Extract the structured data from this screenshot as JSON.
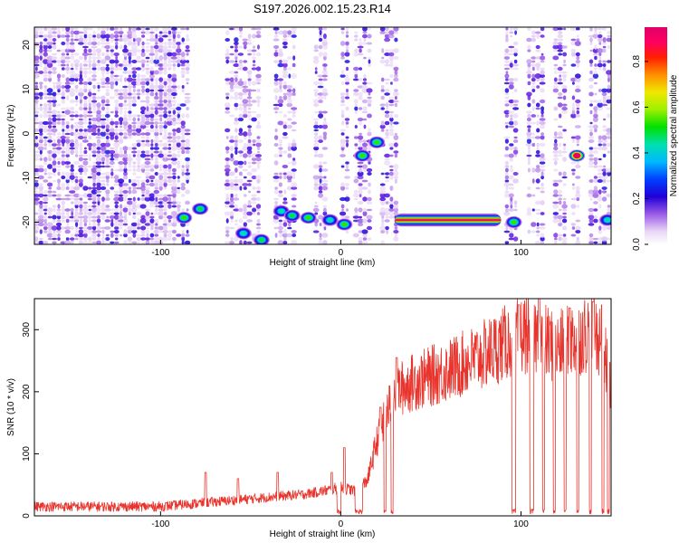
{
  "title": "S197.2026.002.15.23.R14",
  "chart_data": [
    {
      "type": "heatmap",
      "title": "S197.2026.002.15.23.R14",
      "xlabel": "Height of straight line (km)",
      "ylabel": "Frequency (Hz)",
      "xlim": [
        -170,
        150
      ],
      "ylim": [
        -25,
        24
      ],
      "xticks": [
        -100,
        0,
        100
      ],
      "yticks": [
        -20,
        -10,
        0,
        10,
        20
      ],
      "colorbar": {
        "label": "Normalized spectral amplitude",
        "range": [
          0,
          0.95
        ],
        "ticks": [
          0.0,
          0.2,
          0.4,
          0.6,
          0.8
        ],
        "colormap": [
          "#ffffff",
          "#e6d2f5",
          "#b07be6",
          "#6a1ee0",
          "#2200d8",
          "#0050ff",
          "#00c8ff",
          "#00e0a0",
          "#00e000",
          "#aaf000",
          "#f0e000",
          "#ff8800",
          "#ff2000",
          "#ff0070",
          "#e0006a"
        ]
      },
      "gaps_km": [
        [
          -85,
          -65
        ],
        [
          -45,
          -37
        ],
        [
          -25,
          -15
        ],
        [
          -7,
          0
        ],
        [
          4,
          8
        ],
        [
          16,
          22
        ],
        [
          31,
          90
        ],
        [
          99,
          103
        ],
        [
          113,
          117
        ],
        [
          125,
          128
        ],
        [
          134,
          138
        ]
      ],
      "peaks": [
        {
          "x": -87,
          "y": -19,
          "amp": 0.45
        },
        {
          "x": -78,
          "y": -17,
          "amp": 0.4
        },
        {
          "x": -54,
          "y": -22.5,
          "amp": 0.35
        },
        {
          "x": -44,
          "y": -24,
          "amp": 0.4
        },
        {
          "x": -33,
          "y": -17.5,
          "amp": 0.35
        },
        {
          "x": -27,
          "y": -18.5,
          "amp": 0.4
        },
        {
          "x": -18,
          "y": -19,
          "amp": 0.45
        },
        {
          "x": -6,
          "y": -19.5,
          "amp": 0.35
        },
        {
          "x": 2,
          "y": -20.5,
          "amp": 0.45
        },
        {
          "x": 12,
          "y": -5,
          "amp": 0.45
        },
        {
          "x": 20,
          "y": -2,
          "amp": 0.45
        },
        {
          "x": 96,
          "y": -20,
          "amp": 0.45
        },
        {
          "x": 131,
          "y": -5,
          "amp": 0.95
        },
        {
          "x": 148,
          "y": -19.5,
          "amp": 0.35
        }
      ],
      "band": {
        "x_range": [
          30,
          89
        ],
        "y": -19.5,
        "amp": 0.95
      }
    },
    {
      "type": "line",
      "xlabel": "Height of straight line (km)",
      "ylabel": "SNR (10 * v/v)",
      "xlim": [
        -170,
        150
      ],
      "ylim": [
        0,
        350
      ],
      "xticks": [
        -100,
        0,
        100
      ],
      "yticks": [
        0,
        100,
        200,
        300
      ],
      "color": "#e8342c",
      "envelope": [
        {
          "x": -170,
          "y": 15
        },
        {
          "x": -130,
          "y": 15
        },
        {
          "x": -100,
          "y": 15
        },
        {
          "x": -80,
          "y": 20
        },
        {
          "x": -60,
          "y": 25
        },
        {
          "x": -40,
          "y": 30
        },
        {
          "x": -20,
          "y": 35
        },
        {
          "x": 0,
          "y": 45
        },
        {
          "x": 10,
          "y": 40
        },
        {
          "x": 15,
          "y": 60
        },
        {
          "x": 20,
          "y": 120
        },
        {
          "x": 25,
          "y": 160
        },
        {
          "x": 30,
          "y": 200
        },
        {
          "x": 40,
          "y": 215
        },
        {
          "x": 60,
          "y": 235
        },
        {
          "x": 80,
          "y": 260
        },
        {
          "x": 95,
          "y": 285
        },
        {
          "x": 105,
          "y": 295
        },
        {
          "x": 120,
          "y": 270
        },
        {
          "x": 140,
          "y": 300
        },
        {
          "x": 145,
          "y": 280
        },
        {
          "x": 150,
          "y": 205
        }
      ],
      "dropouts": [
        [
          -2,
          0
        ],
        [
          8,
          12
        ],
        [
          24,
          25
        ],
        [
          28,
          29
        ],
        [
          95,
          97
        ],
        [
          105,
          107
        ],
        [
          112,
          113
        ],
        [
          118,
          119
        ],
        [
          124,
          125
        ],
        [
          131,
          132
        ],
        [
          138,
          139
        ],
        [
          145,
          146
        ],
        [
          148,
          149
        ]
      ],
      "spikes": [
        {
          "x": -75,
          "y": 70
        },
        {
          "x": -57,
          "y": 60
        },
        {
          "x": -35,
          "y": 70
        },
        {
          "x": -5,
          "y": 70
        },
        {
          "x": 2,
          "y": 110
        },
        {
          "x": 22,
          "y": 175
        },
        {
          "x": 31,
          "y": 255
        },
        {
          "x": 99,
          "y": 340
        },
        {
          "x": 110,
          "y": 350
        },
        {
          "x": 127,
          "y": 335
        },
        {
          "x": 140,
          "y": 345
        },
        {
          "x": 145,
          "y": 340
        }
      ]
    }
  ]
}
